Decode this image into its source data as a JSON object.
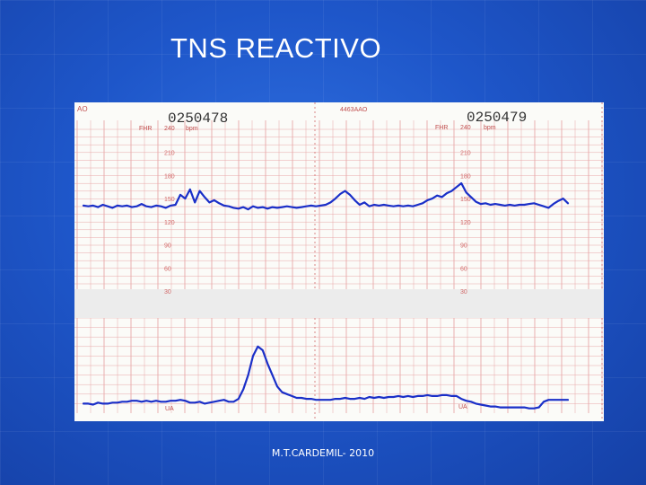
{
  "slide": {
    "title": "TNS REACTIVO",
    "footer": "M.T.CARDEMIL- 2010"
  },
  "colors": {
    "background": "#1e56c9",
    "grid": "#e8a7a7",
    "trace": "#1a2fc8",
    "print": "#d26a6a"
  },
  "chart_data": {
    "type": "line",
    "strip_ids": [
      "0250478",
      "0250479"
    ],
    "header_code": "4463AAO",
    "left_prefix": "AO",
    "fhr_label": "FHR",
    "fhr_top_tick": "240",
    "bpm_label": "bpm",
    "ua_label": "UA",
    "fhr_ticks": [
      "210",
      "180",
      "150",
      "120",
      "90",
      "60",
      "30"
    ],
    "fhr_ylim": [
      30,
      240
    ],
    "grid": true,
    "series": [
      {
        "name": "FHR",
        "x": [
          0,
          1,
          2,
          3,
          4,
          5,
          6,
          7,
          8,
          9,
          10,
          11,
          12,
          13,
          14,
          15,
          16,
          17,
          18,
          19,
          20,
          21,
          22,
          23,
          24,
          25,
          26,
          27,
          28,
          29,
          30,
          31,
          32,
          33,
          34,
          35,
          36,
          37,
          38,
          39,
          40,
          41,
          42,
          43,
          44,
          45,
          46,
          47,
          48,
          49,
          50,
          51,
          52,
          53,
          54,
          55,
          56,
          57,
          58,
          59,
          60,
          61,
          62,
          63,
          64,
          65,
          66,
          67,
          68,
          69,
          70,
          71,
          72,
          73,
          74,
          75,
          76,
          77,
          78,
          79,
          80,
          81,
          82,
          83,
          84,
          85,
          86,
          87,
          88,
          89,
          90,
          91,
          92,
          93,
          94,
          95,
          96,
          97,
          98,
          99,
          100
        ],
        "values": [
          141,
          140,
          141,
          139,
          142,
          140,
          138,
          141,
          140,
          141,
          139,
          140,
          143,
          140,
          139,
          141,
          140,
          138,
          141,
          142,
          155,
          150,
          162,
          145,
          160,
          152,
          145,
          148,
          144,
          141,
          140,
          138,
          137,
          139,
          136,
          140,
          138,
          139,
          137,
          139,
          138,
          139,
          140,
          139,
          138,
          139,
          140,
          141,
          140,
          141,
          142,
          145,
          150,
          156,
          160,
          155,
          148,
          142,
          145,
          140,
          142,
          141,
          142,
          141,
          140,
          141,
          140,
          141,
          140,
          142,
          144,
          148,
          150,
          154,
          152,
          157,
          160,
          165,
          170,
          158,
          152,
          146,
          143,
          144,
          142,
          143,
          142,
          141,
          142,
          141,
          142,
          142,
          143,
          144,
          142,
          140,
          138,
          143,
          147,
          150,
          144
        ],
        "xlim": [
          0,
          100
        ],
        "ylim": [
          30,
          240
        ]
      },
      {
        "name": "UA",
        "x": [
          0,
          1,
          2,
          3,
          4,
          5,
          6,
          7,
          8,
          9,
          10,
          11,
          12,
          13,
          14,
          15,
          16,
          17,
          18,
          19,
          20,
          21,
          22,
          23,
          24,
          25,
          26,
          27,
          28,
          29,
          30,
          31,
          32,
          33,
          34,
          35,
          36,
          37,
          38,
          39,
          40,
          41,
          42,
          43,
          44,
          45,
          46,
          47,
          48,
          49,
          50,
          51,
          52,
          53,
          54,
          55,
          56,
          57,
          58,
          59,
          60,
          61,
          62,
          63,
          64,
          65,
          66,
          67,
          68,
          69,
          70,
          71,
          72,
          73,
          74,
          75,
          76,
          77,
          78,
          79,
          80,
          81,
          82,
          83,
          84,
          85,
          86,
          87,
          88,
          89,
          90,
          91,
          92,
          93,
          94,
          95,
          96,
          97,
          98,
          99,
          100
        ],
        "values": [
          10,
          10,
          9,
          11,
          10,
          10,
          11,
          11,
          12,
          12,
          13,
          13,
          12,
          13,
          12,
          13,
          12,
          12,
          13,
          13,
          14,
          13,
          11,
          11,
          12,
          10,
          11,
          12,
          13,
          14,
          12,
          12,
          15,
          25,
          40,
          60,
          70,
          66,
          52,
          40,
          28,
          22,
          20,
          18,
          16,
          16,
          15,
          15,
          14,
          14,
          14,
          14,
          15,
          15,
          16,
          15,
          15,
          16,
          15,
          17,
          16,
          17,
          16,
          17,
          17,
          18,
          17,
          18,
          17,
          18,
          18,
          19,
          18,
          18,
          19,
          19,
          18,
          18,
          15,
          13,
          12,
          10,
          9,
          8,
          7,
          7,
          6,
          6,
          6,
          6,
          6,
          6,
          5,
          5,
          6,
          12,
          14,
          14,
          14,
          14,
          14
        ],
        "xlim": [
          0,
          100
        ],
        "ylim": [
          0,
          100
        ]
      }
    ]
  }
}
